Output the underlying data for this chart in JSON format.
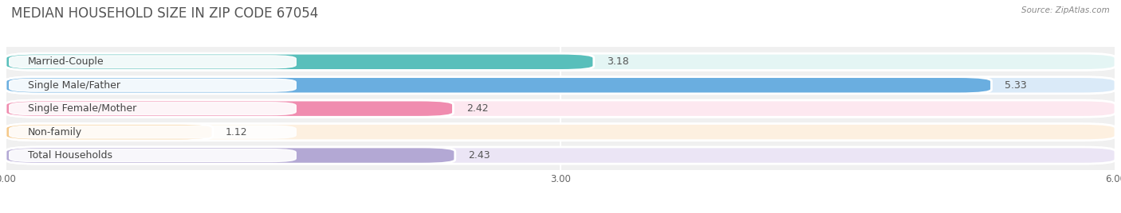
{
  "title": "MEDIAN HOUSEHOLD SIZE IN ZIP CODE 67054",
  "source": "Source: ZipAtlas.com",
  "categories": [
    "Married-Couple",
    "Single Male/Father",
    "Single Female/Mother",
    "Non-family",
    "Total Households"
  ],
  "values": [
    3.18,
    5.33,
    2.42,
    1.12,
    2.43
  ],
  "bar_colors": [
    "#59bfbb",
    "#6aaee0",
    "#f08caf",
    "#f5c98a",
    "#b3a8d4"
  ],
  "bar_bg_colors": [
    "#e4f5f4",
    "#daeaf8",
    "#fde8f0",
    "#fdf0e0",
    "#ebe5f5"
  ],
  "label_bg_color": "#ffffff",
  "xlim": [
    0,
    6.0
  ],
  "xticks": [
    0.0,
    3.0,
    6.0
  ],
  "xtick_labels": [
    "0.00",
    "3.00",
    "6.00"
  ],
  "title_fontsize": 12,
  "label_fontsize": 9,
  "value_fontsize": 9,
  "background_color": "#ffffff",
  "plot_bg_color": "#f0f0f0"
}
